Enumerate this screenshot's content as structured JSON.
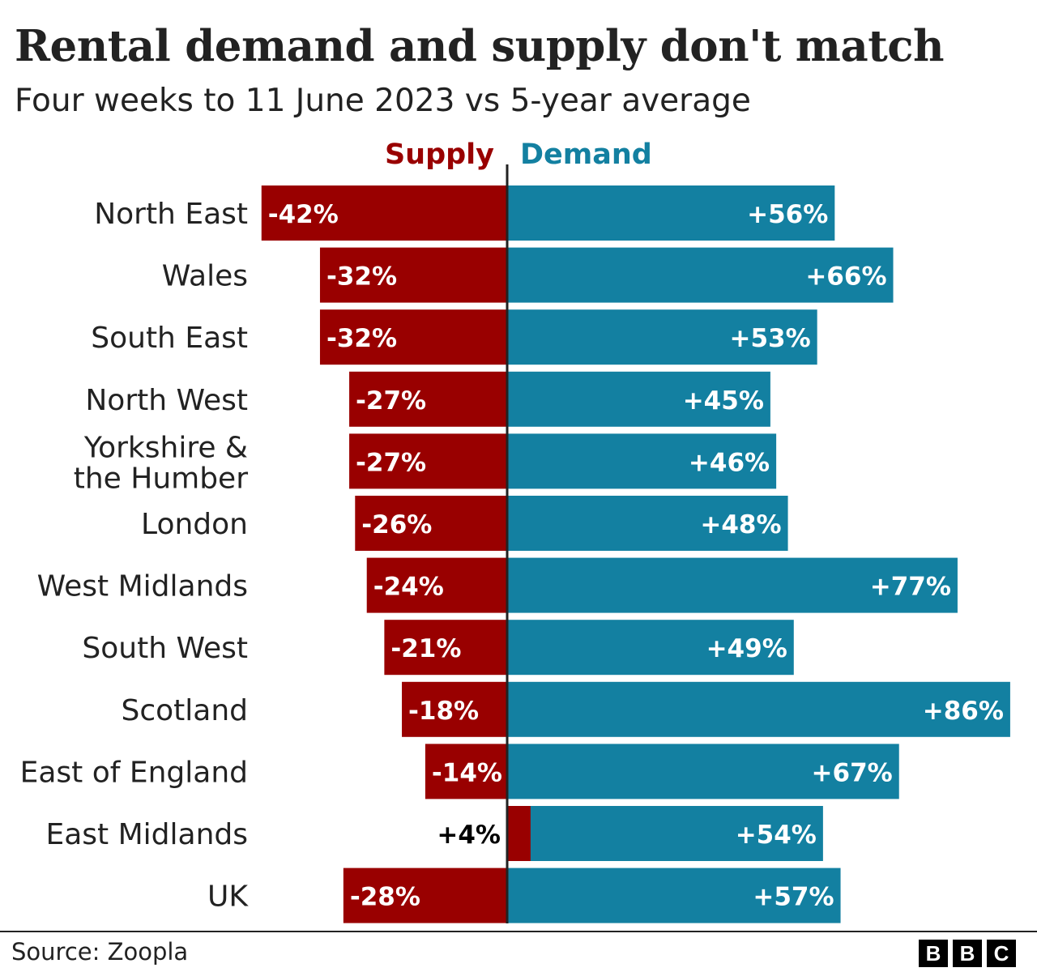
{
  "title": "Rental demand and supply don't match",
  "subtitle": "Four weeks to 11 June 2023 vs 5-year average",
  "source": "Source: Zoopla",
  "logo": "BBC",
  "chart_data": {
    "type": "bar",
    "orientation": "horizontal-diverging",
    "categories": [
      "North East",
      "Wales",
      "South East",
      "North West",
      "Yorkshire & the Humber",
      "London",
      "West Midlands",
      "South West",
      "Scotland",
      "East of England",
      "East Midlands",
      "UK"
    ],
    "series": [
      {
        "name": "Supply",
        "color": "#990000",
        "values": [
          -42,
          -32,
          -32,
          -27,
          -27,
          -26,
          -24,
          -21,
          -18,
          -14,
          4,
          -28
        ],
        "labels": [
          "-42%",
          "-32%",
          "-32%",
          "-27%",
          "-27%",
          "-26%",
          "-24%",
          "-21%",
          "-18%",
          "-14%",
          "+4%",
          "-28%"
        ]
      },
      {
        "name": "Demand",
        "color": "#1380A1",
        "values": [
          56,
          66,
          53,
          45,
          46,
          48,
          77,
          49,
          86,
          67,
          54,
          57
        ],
        "labels": [
          "+56%",
          "+66%",
          "+53%",
          "+45%",
          "+46%",
          "+48%",
          "+77%",
          "+49%",
          "+86%",
          "+67%",
          "+54%",
          "+57%"
        ]
      }
    ],
    "unit": "%",
    "grid": false,
    "legend": "top-center"
  }
}
